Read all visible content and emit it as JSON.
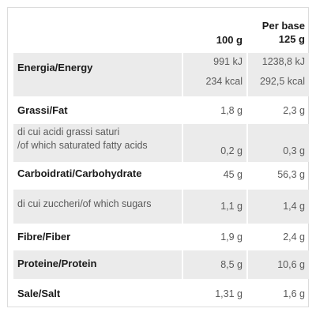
{
  "header": {
    "col_100g": "100 g",
    "col_base_line1": "Per base",
    "col_base_line2": "125 g"
  },
  "rows": [
    {
      "label": "Energia/Energy",
      "v100_line1": "991 kJ",
      "v100_line2": "234 kcal",
      "vbase_line1": "1238,8 kJ",
      "vbase_line2": "292,5 kcal"
    },
    {
      "label": "Grassi/Fat",
      "v100": "1,8 g",
      "vbase": "2,3 g"
    },
    {
      "label_line1": "di cui acidi grassi saturi",
      "label_line2": "/of which saturated fatty acids",
      "v100": "0,2 g",
      "vbase": "0,3 g"
    },
    {
      "label": "Carboidrati/Carbohydrate",
      "v100": "45 g",
      "vbase": "56,3 g"
    },
    {
      "label": "di cui zuccheri/of which sugars",
      "v100": "1,1 g",
      "vbase": "1,4 g"
    },
    {
      "label": "Fibre/Fiber",
      "v100": "1,9 g",
      "vbase": "2,4 g"
    },
    {
      "label": "Proteine/Protein",
      "v100": "8,5 g",
      "vbase": "10,6 g"
    },
    {
      "label": "Sale/Salt",
      "v100": "1,31 g",
      "vbase": "1,6 g"
    }
  ],
  "colors": {
    "shade": "#ebebeb",
    "border": "#dcdcdc",
    "text_bold": "#1a1a1a",
    "text_light": "#5a5a5a"
  }
}
